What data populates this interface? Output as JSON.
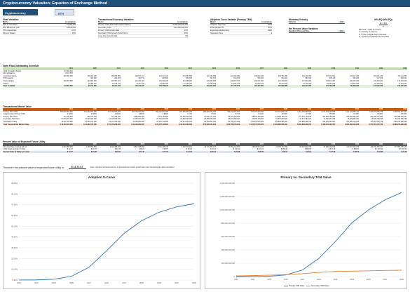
{
  "title": "Cryptocurrency Valuation: Equation of Exchange Method",
  "crypto_label": "Cryptocurrency Valued:",
  "crypto_value": "ETH",
  "float": {
    "title": "Float Variables",
    "header": [
      "Metric",
      "Assumption"
    ],
    "rows": [
      [
        "ETH in Circulation",
        "97,083,422"
      ],
      [
        "ETH Minted per year",
        "18,000,000"
      ],
      [
        "POS reward rate",
        "4.0%"
      ],
      [
        "Percent Staked",
        "10%"
      ]
    ]
  },
  "tam": {
    "title": "Transactional Economy Variables",
    "header": [
      "Metric",
      "Assumption"
    ],
    "rows": [
      [
        "Primary TAM (Total Addressable Market)",
        "$ 386,000,000,000"
      ],
      [
        "Secondary TAM",
        "$ 10,000,000,000"
      ],
      [
        "Primary TAM Growth Rate",
        "10%"
      ],
      [
        "Secondary TAM Growth (Short Term)",
        "20%"
      ],
      [
        "Long Term Growth Rate",
        "3%"
      ]
    ]
  },
  "adoption": {
    "title": "Adoption Curve Variable (Primary TAM)",
    "header": [
      "Metric",
      "Assumption"
    ],
    "rows": [
      [
        "Adoption Start Year",
        "2022"
      ],
      [
        "Final Adoption %",
        "82%"
      ],
      [
        "Expected Adoption Era",
        "2030"
      ],
      [
        "Saturation Time",
        "3"
      ]
    ]
  },
  "velocity": {
    "title": "Monetary Velocity",
    "label": "Velocity",
    "value": "5.00",
    "npv_title": "Net Present Value Variables",
    "discount_label": "Required Discount Rate",
    "discount_value": "30%"
  },
  "mvpq": {
    "title": "MV=PQ (MV=PQ)",
    "eq1": "M = PQ",
    "eq2": "V",
    "lines": [
      "Where M = Value of currency",
      "V = Velocity of currency",
      "P = Price of digital asset processed",
      "Q = Quantity of digital asset processed"
    ]
  },
  "supply": {
    "title": "Open Float Outstanding Schedule",
    "years": [
      "",
      "2019",
      "2020",
      "2021",
      "2022",
      "2023",
      "2024",
      "2025",
      "2026",
      "2027",
      "2028",
      "2029",
      "2030",
      "2031",
      "2032",
      "2033"
    ],
    "rows": [
      [
        "Initial Circulating Supply",
        "97,083,422",
        "",
        "",
        "",
        "",
        "",
        "",
        "",
        "",
        "",
        "",
        "",
        "",
        "",
        ""
      ],
      [
        "Mining Balance",
        "2,917,578",
        "",
        "",
        "",
        "",
        "",
        "",
        "",
        "",
        "",
        "",
        "",
        "",
        "",
        ""
      ],
      [
        "Circulating Supply",
        "100,000,000",
        "100,000,000",
        "106,960,580",
        "125,517,121",
        "113,417,224",
        "121,583,564",
        "124,135,908",
        "124,922,380",
        "130,062,398",
        "146,751,490",
        "151,321,050",
        "157,112,500",
        "162,117,250",
        "163,981,430",
        "171,111,550"
      ],
      [
        "POS rewards",
        "",
        "400,000",
        "382,023",
        "424,711",
        "453,669",
        "506,033",
        "511,153",
        "512,203",
        "536,094",
        "563,022",
        "587,006",
        "605,119",
        "622,004",
        "647,009",
        "681,221"
      ],
      [
        "Total available",
        "100,000,000",
        "103,602,000",
        "107,367,272",
        "112,221,031",
        "115,320,225",
        "121,089,600",
        "123,252,986",
        "130,874,784",
        "136,041,090",
        "142,103,209",
        "147,019,202",
        "153,011,087",
        "158,120,000",
        "164,002,611",
        "170,231,009"
      ],
      [
        "Staked",
        "",
        "10,360,210",
        "10,736,734",
        "11,097,111",
        "11,532,023",
        "12,153,330",
        "12,325,299",
        "13,087,478",
        "13,604,109",
        "14,210,320",
        "14,701,920",
        "15,301,109",
        "15,812,000",
        "16,400,261",
        "17,023,101"
      ],
      [
        "Float Available",
        "90,000,000",
        "93,241,800",
        "96,631,164",
        "100,123,920",
        "103,788,202",
        "108,936,270",
        "110,927,687",
        "117,787,306",
        "122,437,981",
        "127,892,888",
        "132,317,282",
        "137,709,978",
        "142,308,000",
        "147,602,350",
        "153,207,908"
      ]
    ]
  },
  "market": {
    "title": "Transactional Market Value",
    "years": [
      "",
      "2019",
      "2020",
      "2021",
      "2022",
      "2023",
      "2024",
      "2025",
      "2026",
      "2027",
      "2028",
      "2029",
      "2030",
      "2031",
      "2032",
      "2033"
    ],
    "rows": [
      [
        "Primary TAM (USD)",
        "386,000,000,000",
        "424,600,000,000",
        "467,060,000,000",
        "513,766,000,000",
        "565,142,600,000",
        "621,656,860,000",
        "683,822,546,000",
        "752,204,800,600",
        "827,425,280,660",
        "910,167,808,726",
        "1,001,184,589,599",
        "1,101,303,048,558",
        "1,211,433,353,414",
        "1,332,576,688,756",
        "1,465,834,357,631"
      ],
      [
        "Adoption Rate (Primary TAM)",
        "0.029%",
        "0.069%",
        "0.160%",
        "0.362%",
        "0.800%",
        "1.71%",
        "3.51%",
        "6.77%",
        "11.91%",
        "18.94%",
        "27.16%",
        "35.59%",
        "43.35%",
        "49.90%",
        "55.06%"
      ],
      [
        "Primary TAM Value",
        "111,940,000",
        "292,974,000",
        "747,296,000",
        "1,859,832,920",
        "4,521,140,800",
        "10,630,332,306",
        "24,002,171,364",
        "50,924,264,999",
        "98,546,350,926",
        "172,385,782,973",
        "271,921,734,538",
        "391,953,755,982",
        "525,156,362,697",
        "664,955,767,689",
        "807,088,397,311"
      ],
      [
        "Secondary TAM Value",
        "10,000,000,000",
        "12,000,000,000",
        "14,400,000,000",
        "17,280,000,000",
        "20,736,000,000",
        "24,883,200,000",
        "29,859,840,000",
        "35,831,808,000",
        "42,998,169,600",
        "51,597,803,520",
        "61,917,364,224",
        "74,300,837,069",
        "76,529,862,181",
        "78,825,758,046",
        "81,190,530,788"
      ],
      [
        "Total Market Value",
        "10,111,940,000",
        "12,292,974,000",
        "15,147,296,000",
        "19,139,832,920",
        "25,257,140,800",
        "35,513,532,306",
        "53,862,011,364",
        "86,756,072,999",
        "141,544,520,526",
        "223,983,586,493",
        "333,839,098,762",
        "466,254,593,051",
        "601,686,224,878",
        "743,781,525,735",
        "888,278,928,099"
      ],
      [
        "Total Transactional Market Value",
        "$ 10,111,940,000",
        "$ 12,292,974,000",
        "$ 15,147,296,000",
        "$ 19,139,832,920",
        "$ 25,257,140,800",
        "$ 35,513,532,306",
        "$ 53,862,011,364",
        "$ 86,756,072,999",
        "$ 141,544,520,526",
        "$ 223,983,586,493",
        "$ 333,839,098,762",
        "$ 466,254,593,051",
        "$ 601,686,224,878",
        "$ 743,781,525,735",
        "$ 888,278,928,099"
      ]
    ]
  },
  "pv": {
    "title": "Present Value of Expected Future Utility",
    "years": [
      "",
      "2019",
      "2020",
      "2021",
      "2022",
      "2023",
      "2024",
      "2025",
      "2026",
      "2027",
      "2028",
      "2029",
      "2030",
      "2031",
      "2032",
      "2033"
    ],
    "rows": [
      [
        "Monetary Base required (M) (V)",
        "2,022,388,000",
        "2,458,594,800",
        "3,029,459,200",
        "3,827,966,584",
        "5,051,428,160",
        "7,102,706,461",
        "10,772,402,273",
        "17,351,214,600",
        "28,308,904,105",
        "44,796,717,299",
        "66,767,819,752",
        "93,250,918,610",
        "120,337,244,976",
        "148,756,305,147",
        "177,655,785,620"
      ],
      [
        "Utility Value per token in Float",
        "$ 22.47",
        "$ 26.37",
        "$ 31.35",
        "$ 38.23",
        "$ 48.67",
        "$ 65.20",
        "$ 97.11",
        "$ 147.31",
        "$ 231.21",
        "$ 350.26",
        "$ 504.60",
        "$ 677.15",
        "$ 845.61",
        "$ 1,007.81",
        "$ 1,159.54"
      ],
      [
        "Present Value of Utility per token",
        "$ 22.47",
        "$ 20.28",
        "$ 18.55",
        "$ 17.40",
        "$ 17.04",
        "$ 17.56",
        "$ 20.12",
        "$ 23.48",
        "$ 28.35",
        "$ 33.04",
        "$ 36.61",
        "$ 37.79",
        "$ 36.30",
        "$ 33.28",
        "$ 29.45"
      ]
    ]
  },
  "summary": {
    "label": "Therefore the present value of expected future utility is:",
    "value": "$ 11,72.67",
    "note": "Note: includes perpetual security at transactional market growth rate (see transactional market variables)"
  },
  "chart_data": [
    {
      "type": "line",
      "title": "Adoption S-Curve",
      "x": [
        "2019",
        "2021",
        "2023",
        "2025",
        "2027",
        "2029",
        "2031",
        "2033",
        "2035",
        "2037",
        "2039"
      ],
      "series": [
        {
          "values": [
            0.0003,
            0.0016,
            0.008,
            0.035,
            0.119,
            0.272,
            0.434,
            0.551,
            0.63,
            0.68,
            0.71
          ]
        }
      ],
      "ylim": [
        0,
        0.9
      ],
      "yticks": [
        "90.00%",
        "80.00%",
        "70.00%",
        "60.00%",
        "50.00%",
        "40.00%",
        "30.00%",
        "20.00%",
        "10.00%",
        "0.00%"
      ],
      "color": "#2e75b6"
    },
    {
      "type": "line",
      "title": "Primary vs. Secondary TAM Value",
      "x": [
        "2019",
        "2021",
        "2023",
        "2025",
        "2027",
        "2029",
        "2031",
        "2033",
        "2035",
        "2037",
        "2039"
      ],
      "series": [
        {
          "name": "Primary TAM Value",
          "values": [
            0.11,
            0.75,
            4.5,
            24,
            98,
            272,
            525,
            807,
            1000,
            1150,
            1260
          ]
        },
        {
          "name": "Secondary TAM Value",
          "values": [
            10,
            14.4,
            20.7,
            29.9,
            43,
            62,
            76.5,
            81.2,
            86,
            91,
            96
          ]
        }
      ],
      "ylim": [
        0,
        1400
      ],
      "yticks": [
        "1,400,000,000,000",
        "1,200,000,000,000",
        "1,000,000,000,000",
        "800,000,000,000",
        "600,000,000,000",
        "400,000,000,000",
        "200,000,000,000",
        "0"
      ],
      "colors": [
        "#2e75b6",
        "#ed7d31"
      ]
    }
  ]
}
